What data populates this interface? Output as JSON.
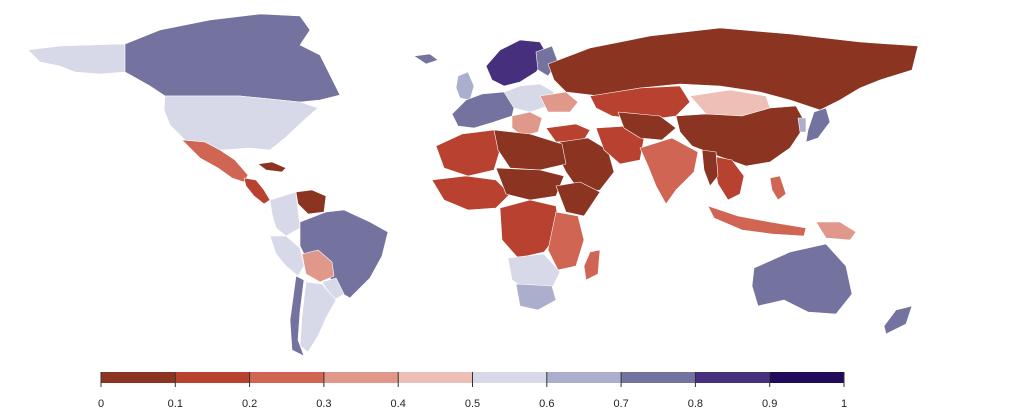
{
  "legend": {
    "ticks": [
      "0",
      "0.1",
      "0.2",
      "0.3",
      "0.4",
      "0.5",
      "0.6",
      "0.7",
      "0.8",
      "0.9",
      "1"
    ],
    "colors": [
      "#8b3422",
      "#b8412f",
      "#cf6552",
      "#e0988a",
      "#eebfb7",
      "#d7d8e8",
      "#abaecd",
      "#74739f",
      "#46307e",
      "#1f0b5a"
    ]
  },
  "map": {
    "regions": [
      {
        "name": "greenland",
        "bin": null
      },
      {
        "name": "alaska",
        "bin": 5
      },
      {
        "name": "canada",
        "bin": 7
      },
      {
        "name": "usa",
        "bin": 5
      },
      {
        "name": "mexico",
        "bin": 2
      },
      {
        "name": "central-america",
        "bin": 1
      },
      {
        "name": "cuba",
        "bin": 0
      },
      {
        "name": "venezuela",
        "bin": 0
      },
      {
        "name": "colombia",
        "bin": 5
      },
      {
        "name": "peru",
        "bin": 5
      },
      {
        "name": "brazil",
        "bin": 7
      },
      {
        "name": "bolivia",
        "bin": 3
      },
      {
        "name": "paraguay",
        "bin": 5
      },
      {
        "name": "argentina",
        "bin": 5
      },
      {
        "name": "chile",
        "bin": 7
      },
      {
        "name": "iceland",
        "bin": 7
      },
      {
        "name": "uk-ireland",
        "bin": 6
      },
      {
        "name": "scandinavia",
        "bin": 8
      },
      {
        "name": "finland",
        "bin": 7
      },
      {
        "name": "western-europe",
        "bin": 7
      },
      {
        "name": "eastern-europe",
        "bin": 5
      },
      {
        "name": "balkans",
        "bin": 3
      },
      {
        "name": "ukraine",
        "bin": 3
      },
      {
        "name": "russia",
        "bin": 0
      },
      {
        "name": "kazakhstan",
        "bin": 1
      },
      {
        "name": "mongolia",
        "bin": 4
      },
      {
        "name": "china",
        "bin": 0
      },
      {
        "name": "japan",
        "bin": 7
      },
      {
        "name": "korea",
        "bin": 6
      },
      {
        "name": "turkey",
        "bin": 1
      },
      {
        "name": "middle-east",
        "bin": 0
      },
      {
        "name": "iran",
        "bin": 1
      },
      {
        "name": "central-asia",
        "bin": 0
      },
      {
        "name": "india",
        "bin": 2
      },
      {
        "name": "southeast-asia",
        "bin": 1
      },
      {
        "name": "myanmar",
        "bin": 0
      },
      {
        "name": "indonesia",
        "bin": 2
      },
      {
        "name": "philippines",
        "bin": 2
      },
      {
        "name": "papua",
        "bin": 3
      },
      {
        "name": "north-africa",
        "bin": 1
      },
      {
        "name": "egypt-libya",
        "bin": 0
      },
      {
        "name": "west-africa",
        "bin": 1
      },
      {
        "name": "sahel",
        "bin": 0
      },
      {
        "name": "horn-of-africa",
        "bin": 0
      },
      {
        "name": "central-africa",
        "bin": 1
      },
      {
        "name": "east-africa",
        "bin": 2
      },
      {
        "name": "southern-africa",
        "bin": 5
      },
      {
        "name": "south-africa",
        "bin": 6
      },
      {
        "name": "madagascar",
        "bin": 2
      },
      {
        "name": "australia",
        "bin": 7
      },
      {
        "name": "new-zealand",
        "bin": 7
      }
    ]
  }
}
